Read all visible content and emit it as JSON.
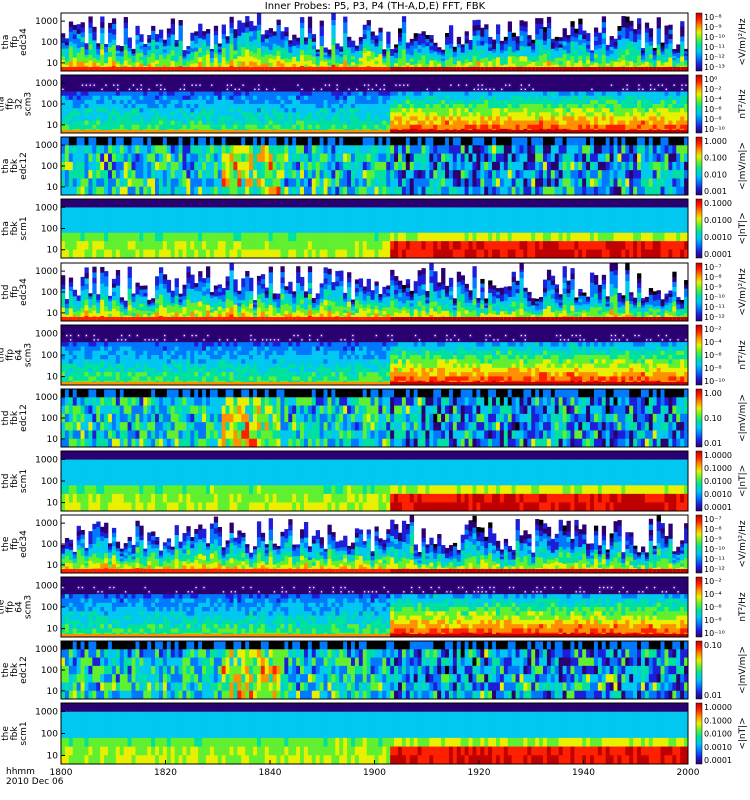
{
  "chart_data": {
    "type": "heatmap",
    "title": "Inner Probes: P5, P3, P4 (TH-A,D,E) FFT, FBK",
    "x_axis": {
      "range": [
        "1800",
        "2000"
      ],
      "ticks": [
        "1800",
        "1820",
        "1840",
        "1900",
        "1920",
        "1940",
        "2000"
      ],
      "label_line1": "hhmm",
      "label_line2": "2010 Dec 06"
    },
    "panels": [
      {
        "label": [
          "tha",
          "ffp",
          "edc34"
        ],
        "yticks": [
          "10",
          "100",
          "1000"
        ],
        "cb_ticks": [
          "10⁻⁸",
          "10⁻⁹",
          "10⁻¹⁰",
          "10⁻¹¹",
          "10⁻¹²",
          "10⁻¹³"
        ],
        "units": "<V/m)²/Hz",
        "style": "edc"
      },
      {
        "label": [
          "tha",
          "ffp",
          "32",
          "scm3"
        ],
        "yticks": [
          "10",
          "100",
          "1000"
        ],
        "cb_ticks": [
          "10⁰",
          "10⁻²",
          "10⁻⁴",
          "10⁻⁶",
          "10⁻⁸",
          "10⁻¹⁰"
        ],
        "units": "nT²/Hz",
        "style": "scm"
      },
      {
        "label": [
          "tha",
          "fbk",
          "edc12"
        ],
        "yticks": [
          "10",
          "100",
          "1000"
        ],
        "cb_ticks": [
          "1.000",
          "0.100",
          "0.010",
          "0.001"
        ],
        "units": "<|mV/m|>",
        "style": "fbk"
      },
      {
        "label": [
          "tha",
          "fbk",
          "scm1"
        ],
        "yticks": [
          "10",
          "100",
          "1000"
        ],
        "cb_ticks": [
          "0.1000",
          "0.0100",
          "0.0010",
          "0.0001"
        ],
        "units": "<|nT|>",
        "style": "fbks"
      },
      {
        "label": [
          "thd",
          "ffp",
          "edc34"
        ],
        "yticks": [
          "10",
          "100",
          "1000"
        ],
        "cb_ticks": [
          "10⁻⁷",
          "10⁻⁸",
          "10⁻⁹",
          "10⁻¹⁰",
          "10⁻¹¹",
          "10⁻¹²"
        ],
        "units": "<V/m)²/Hz",
        "style": "edc"
      },
      {
        "label": [
          "thd",
          "ffp",
          "64",
          "scm3"
        ],
        "yticks": [
          "10",
          "100",
          "1000"
        ],
        "cb_ticks": [
          "10⁻²",
          "10⁻⁴",
          "10⁻⁶",
          "10⁻⁸",
          "10⁻¹⁰"
        ],
        "units": "nT²/Hz",
        "style": "scm"
      },
      {
        "label": [
          "thd",
          "fbk",
          "edc12"
        ],
        "yticks": [
          "10",
          "100",
          "1000"
        ],
        "cb_ticks": [
          "1.00",
          "0.10",
          "0.01"
        ],
        "units": "<|mV/m|>",
        "style": "fbk"
      },
      {
        "label": [
          "thd",
          "fbk",
          "scm1"
        ],
        "yticks": [
          "10",
          "100",
          "1000"
        ],
        "cb_ticks": [
          "1.0000",
          "0.1000",
          "0.0100",
          "0.0010",
          "0.0001"
        ],
        "units": "<|nT|>",
        "style": "fbks"
      },
      {
        "label": [
          "the",
          "ffp",
          "edc34"
        ],
        "yticks": [
          "10",
          "100",
          "1000"
        ],
        "cb_ticks": [
          "10⁻⁷",
          "10⁻⁸",
          "10⁻⁹",
          "10⁻¹⁰",
          "10⁻¹¹",
          "10⁻¹²"
        ],
        "units": "<V/m)²/Hz",
        "style": "edc"
      },
      {
        "label": [
          "the",
          "ffp",
          "64",
          "scm3"
        ],
        "yticks": [
          "10",
          "100",
          "1000"
        ],
        "cb_ticks": [
          "10⁻²",
          "10⁻⁴",
          "10⁻⁶",
          "10⁻⁸",
          "10⁻¹⁰"
        ],
        "units": "nT²/Hz",
        "style": "scm"
      },
      {
        "label": [
          "the",
          "fbk",
          "edc12"
        ],
        "yticks": [
          "10",
          "100",
          "1000"
        ],
        "cb_ticks": [
          "0.10",
          "0.01"
        ],
        "units": "<|mV/m|>",
        "style": "fbk"
      },
      {
        "label": [
          "the",
          "fbk",
          "scm1"
        ],
        "yticks": [
          "10",
          "100",
          "1000"
        ],
        "cb_ticks": [
          "1.0000",
          "0.1000",
          "0.0100",
          "0.0010",
          "0.0001"
        ],
        "units": "<|nT|>",
        "style": "fbks"
      }
    ],
    "colorscale": [
      "#000000",
      "#2b0070",
      "#1e1ed8",
      "#0078ff",
      "#00c8f0",
      "#00e0a0",
      "#60f030",
      "#e8f000",
      "#ff9000",
      "#ff2000",
      "#c00000"
    ]
  }
}
